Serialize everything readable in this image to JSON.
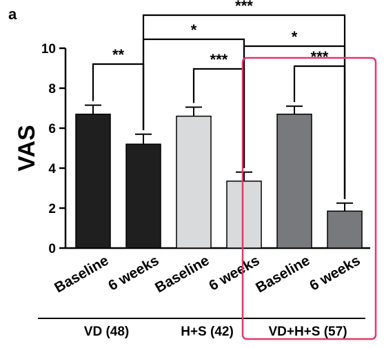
{
  "panel_label": "a",
  "colors": {
    "vd": "#1f1f1f",
    "hs": "#d8dadb",
    "vdhs": "#77797c",
    "highlight": "#e3366a",
    "axis": "#000000"
  },
  "chart_data": {
    "type": "bar",
    "title": "",
    "ylabel": "VAS",
    "xlabel": "",
    "ylim": [
      0,
      10
    ],
    "yticks": [
      "0",
      "2",
      "4",
      "6",
      "8",
      "10"
    ],
    "categories": [
      "Baseline",
      "6 weeks",
      "Baseline",
      "6 weeks",
      "Baseline",
      "6 weeks"
    ],
    "values": [
      6.7,
      5.2,
      6.6,
      3.35,
      6.7,
      1.85
    ],
    "errors": [
      0.45,
      0.5,
      0.45,
      0.45,
      0.4,
      0.4
    ],
    "bar_colors": [
      "#1f1f1f",
      "#1f1f1f",
      "#d8dadb",
      "#d8dadb",
      "#77797c",
      "#77797c"
    ],
    "groups": [
      {
        "label": "VD (48)",
        "bars": [
          0,
          1
        ]
      },
      {
        "label": "H+S (42)",
        "bars": [
          2,
          3
        ]
      },
      {
        "label": "VD+H+S (57)",
        "bars": [
          4,
          5
        ]
      }
    ],
    "significance": [
      {
        "from": 0,
        "to": 1,
        "label": "**"
      },
      {
        "from": 2,
        "to": 3,
        "label": "***"
      },
      {
        "from": 4,
        "to": 5,
        "label": "***"
      },
      {
        "from": 1,
        "to": 3,
        "label": "*"
      },
      {
        "from": 3,
        "to": 5,
        "label": "*"
      },
      {
        "from": 1,
        "to": 5,
        "label": "***"
      }
    ],
    "highlighted_group": 2,
    "grid": false,
    "legend": "none"
  }
}
